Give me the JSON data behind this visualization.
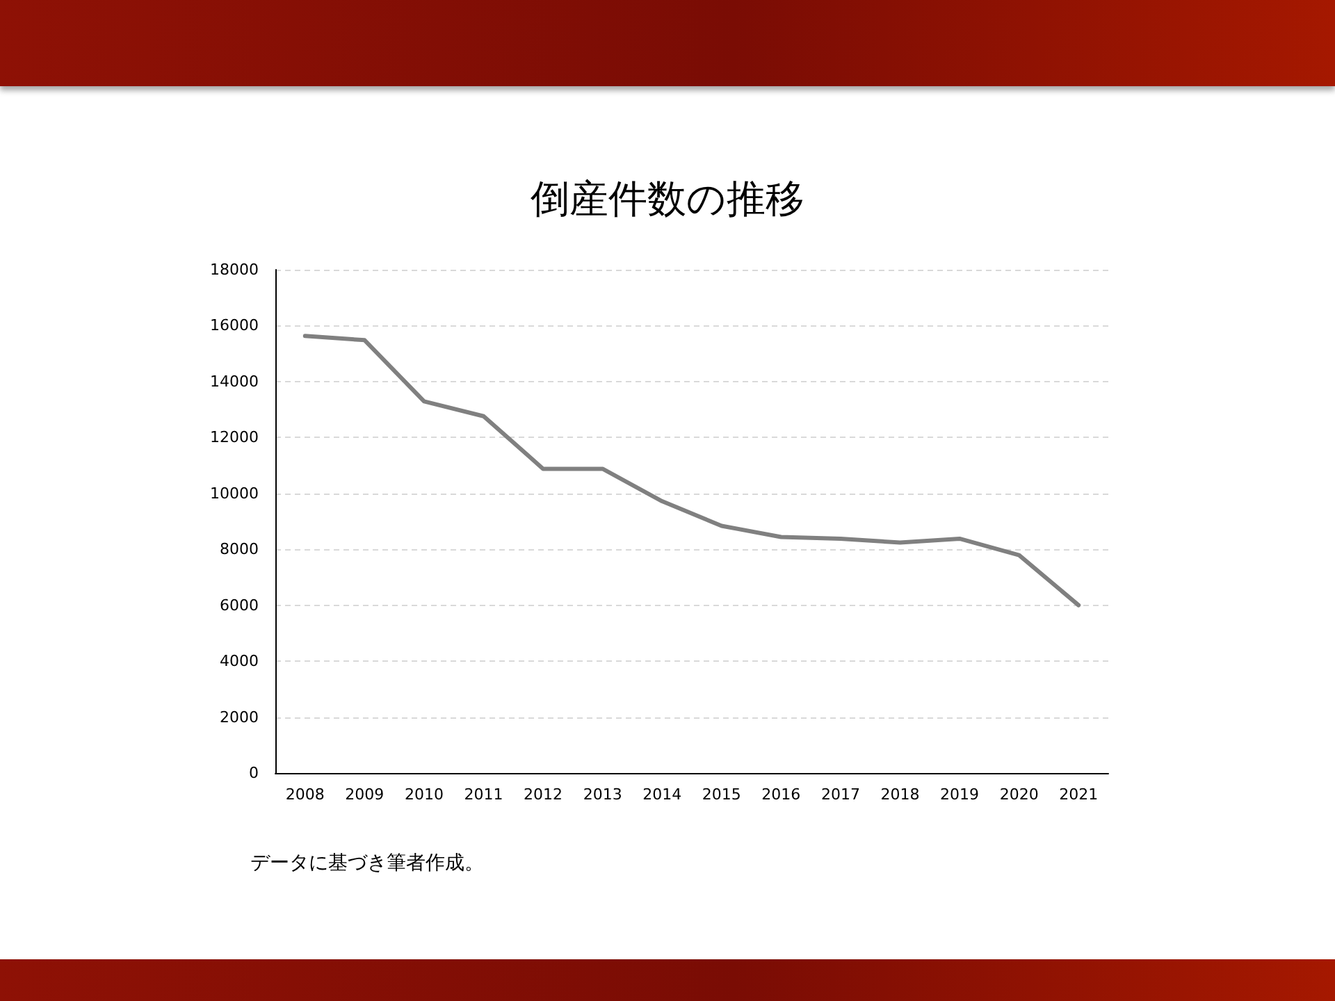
{
  "chart_data": {
    "type": "line",
    "title": "倒産件数の推移",
    "categories": [
      "2008",
      "2009",
      "2010",
      "2011",
      "2012",
      "2013",
      "2014",
      "2015",
      "2016",
      "2017",
      "2018",
      "2019",
      "2020",
      "2021"
    ],
    "values": [
      15630,
      15480,
      13290,
      12760,
      10880,
      10880,
      9720,
      8840,
      8440,
      8380,
      8240,
      8380,
      7790,
      6000
    ],
    "color": "#808080",
    "ylim": [
      0,
      18000
    ],
    "yticks": [
      0,
      2000,
      4000,
      6000,
      8000,
      10000,
      12000,
      14000,
      16000,
      18000
    ],
    "grid": "y",
    "marker": "none",
    "line_style": "solid",
    "annotations": [
      "データに基づき筆者作成。"
    ]
  }
}
